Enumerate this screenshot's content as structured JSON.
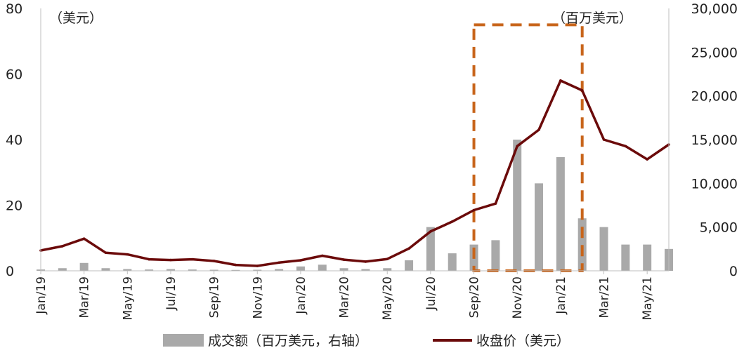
{
  "chart_data": {
    "type": "bar+line",
    "left_unit_label": "（美元）",
    "right_unit_label": "（百万美元）",
    "left_axis": {
      "min": 0,
      "max": 80,
      "ticks": [
        "0",
        "20",
        "40",
        "60",
        "80"
      ]
    },
    "right_axis": {
      "min": 0,
      "max": 30000,
      "ticks": [
        "0",
        "5,000",
        "10,000",
        "15,000",
        "20,000",
        "25,000",
        "30,000"
      ]
    },
    "x_ticks": [
      "Jan/19",
      "Mar/19",
      "May/19",
      "Jul/19",
      "Sep/19",
      "Nov/19",
      "Jan/20",
      "Mar/20",
      "May/20",
      "Jul/20",
      "Sep/20",
      "Nov/20",
      "Jan/21",
      "Mar/21",
      "May/21"
    ],
    "x_range": [
      "Jan/19",
      "Jun/21"
    ],
    "legend": {
      "volume": "成交额（百万美元，右轴）",
      "close": "收盘价（美元）"
    },
    "colors": {
      "close": "#6b0a0a",
      "volume": "#a9a9a9",
      "highlight": "#c8651b"
    },
    "highlight_box": {
      "x_start": "Sep/20",
      "x_end": "Feb/21",
      "y_min": 0,
      "y_max": 75,
      "axis": "left"
    },
    "close_series": {
      "name": "收盘价（美元）",
      "axis": "left",
      "points": [
        [
          "Jan/19",
          6.2
        ],
        [
          "Feb/19",
          7.5
        ],
        [
          "Mar/19",
          9.8
        ],
        [
          "Apr/19",
          5.5
        ],
        [
          "May/19",
          5.0
        ],
        [
          "Jun/19",
          3.5
        ],
        [
          "Jul/19",
          3.3
        ],
        [
          "Aug/19",
          3.5
        ],
        [
          "Sep/19",
          3.0
        ],
        [
          "Oct/19",
          1.8
        ],
        [
          "Nov/19",
          1.5
        ],
        [
          "Dec/19",
          2.5
        ],
        [
          "Jan/20",
          3.2
        ],
        [
          "Feb/20",
          4.6
        ],
        [
          "Mar/20",
          3.4
        ],
        [
          "Apr/20",
          2.8
        ],
        [
          "May/20",
          3.6
        ],
        [
          "Jun/20",
          6.8
        ],
        [
          "Jul/20",
          12.0
        ],
        [
          "Aug/20",
          15.0
        ],
        [
          "Sep/20",
          18.5
        ],
        [
          "Oct/20",
          20.5
        ],
        [
          "Nov/20",
          38.0
        ],
        [
          "Dec/20",
          43.0
        ],
        [
          "Jan/21",
          58.0
        ],
        [
          "Feb/21",
          55.0
        ],
        [
          "Mar/21",
          40.0
        ],
        [
          "Apr/21",
          38.0
        ],
        [
          "May/21",
          34.0
        ],
        [
          "Jun/21",
          38.5
        ]
      ]
    },
    "volume_series": {
      "name": "成交额（百万美元，右轴）",
      "axis": "right",
      "points": [
        [
          "Jan/19",
          150
        ],
        [
          "Feb/19",
          300
        ],
        [
          "Mar/19",
          900
        ],
        [
          "Apr/19",
          300
        ],
        [
          "May/19",
          200
        ],
        [
          "Jun/19",
          150
        ],
        [
          "Jul/19",
          200
        ],
        [
          "Aug/19",
          150
        ],
        [
          "Sep/19",
          120
        ],
        [
          "Oct/19",
          100
        ],
        [
          "Nov/19",
          120
        ],
        [
          "Dec/19",
          200
        ],
        [
          "Jan/20",
          500
        ],
        [
          "Feb/20",
          700
        ],
        [
          "Mar/20",
          300
        ],
        [
          "Apr/20",
          200
        ],
        [
          "May/20",
          300
        ],
        [
          "Jun/20",
          1200
        ],
        [
          "Jul/20",
          5000
        ],
        [
          "Aug/20",
          2000
        ],
        [
          "Sep/20",
          3000
        ],
        [
          "Oct/20",
          3500
        ],
        [
          "Nov/20",
          15000
        ],
        [
          "Dec/20",
          10000
        ],
        [
          "Jan/21",
          13000
        ],
        [
          "Feb/21",
          6000
        ],
        [
          "Mar/21",
          5000
        ],
        [
          "Apr/21",
          3000
        ],
        [
          "May/21",
          3000
        ],
        [
          "Jun/21",
          2500
        ]
      ]
    }
  }
}
